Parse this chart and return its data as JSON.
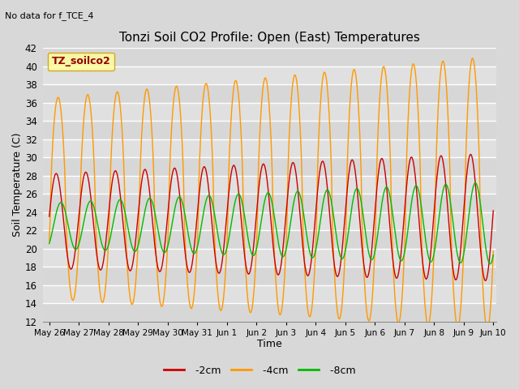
{
  "title": "Tonzi Soil CO2 Profile: Open (East) Temperatures",
  "subtitle": "No data for f_TCE_4",
  "xlabel": "Time",
  "ylabel": "Soil Temperature (C)",
  "ylim": [
    12,
    42
  ],
  "yticks": [
    12,
    14,
    16,
    18,
    20,
    22,
    24,
    26,
    28,
    30,
    32,
    34,
    36,
    38,
    40,
    42
  ],
  "xtick_labels": [
    "May 26",
    "May 27",
    "May 28",
    "May 29",
    "May 30",
    "May 31",
    "Jun 1",
    "Jun 2",
    "Jun 3",
    "Jun 4",
    "Jun 5",
    "Jun 6",
    "Jun 7",
    "Jun 8",
    "Jun 9",
    "Jun 10"
  ],
  "color_2cm": "#cc0000",
  "color_4cm": "#ff9900",
  "color_8cm": "#00bb00",
  "legend_box_color": "#ffff99",
  "legend_box_edge": "#cc9900",
  "legend_label": "TZ_soilco2",
  "bg_color": "#d8d8d8",
  "plot_bg_color": "#e0e0e0",
  "line_width": 1.0,
  "n_days": 15,
  "figwidth": 6.4,
  "figheight": 4.8,
  "dpi": 100
}
